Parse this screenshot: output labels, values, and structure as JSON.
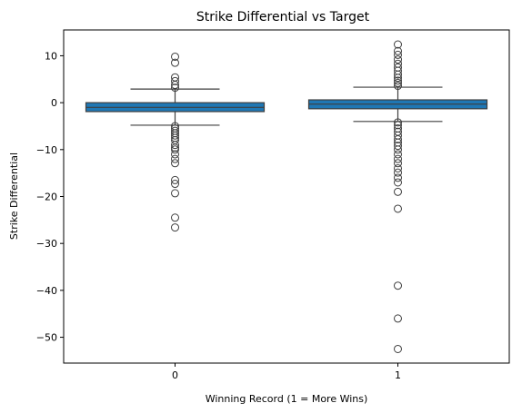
{
  "chart_data": {
    "type": "box",
    "title": "Strike Differential vs Target",
    "xlabel": "Winning Record (1 = More Wins)",
    "ylabel": "Strike Differential",
    "categories": [
      "0",
      "1"
    ],
    "ylim": [
      -55.5,
      15.5
    ],
    "yticks": [
      10,
      0,
      -10,
      -20,
      -30,
      -40,
      -50
    ],
    "ytick_labels": [
      "10",
      "0",
      "−10",
      "−20",
      "−30",
      "−40",
      "−50"
    ],
    "grid": false,
    "box_color": "#1f77b4",
    "boxes": [
      {
        "category": "0",
        "q1": -1.9,
        "median": -1.0,
        "q3": 0.0,
        "whisker_low": -4.8,
        "whisker_high": 2.9,
        "outliers": [
          9.8,
          8.5,
          5.4,
          4.6,
          3.8,
          3.2,
          -5.0,
          -5.5,
          -6.0,
          -6.5,
          -7.0,
          -7.5,
          -8.0,
          -9.0,
          -9.6,
          -10.0,
          -11.0,
          -12.0,
          -12.9,
          -16.5,
          -17.3,
          -19.3,
          -24.5,
          -26.6
        ]
      },
      {
        "category": "1",
        "q1": -1.3,
        "median": -0.3,
        "q3": 0.6,
        "whisker_low": -4.0,
        "whisker_high": 3.3,
        "outliers": [
          12.4,
          11.0,
          10.2,
          9.2,
          8.3,
          7.5,
          6.8,
          6.0,
          5.3,
          4.7,
          4.2,
          3.6,
          -4.2,
          -4.8,
          -5.5,
          -6.2,
          -7.0,
          -7.8,
          -8.5,
          -9.2,
          -10.0,
          -11.0,
          -12.0,
          -12.9,
          -14.0,
          -14.9,
          -16.0,
          -17.0,
          -19.0,
          -22.6,
          -39.0,
          -46.0,
          -52.5
        ]
      }
    ]
  }
}
